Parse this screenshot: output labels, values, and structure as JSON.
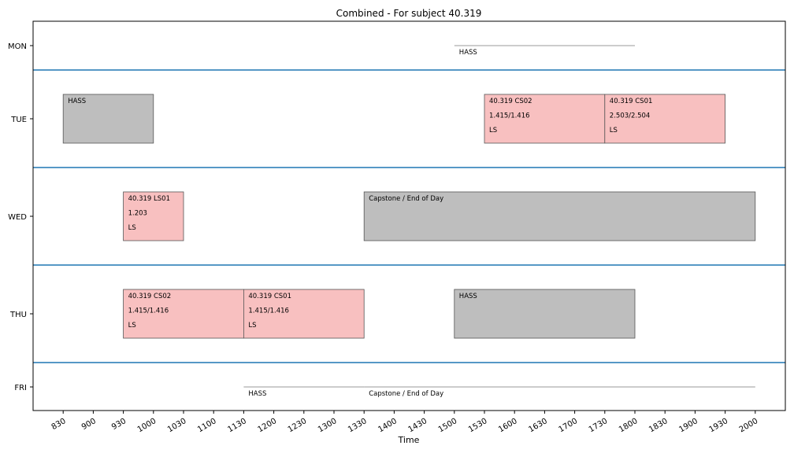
{
  "chart_data": {
    "type": "timeline",
    "title": "Combined - For subject 40.319",
    "xlabel": "Time",
    "ylabel": "",
    "x_ticks": [
      "830",
      "900",
      "930",
      "1000",
      "1030",
      "1100",
      "1130",
      "1200",
      "1230",
      "1300",
      "1330",
      "1400",
      "1430",
      "1500",
      "1530",
      "1600",
      "1630",
      "1700",
      "1730",
      "1800",
      "1830",
      "1900",
      "1930",
      "2000"
    ],
    "xlim": [
      "800",
      "2030"
    ],
    "days": [
      "MON",
      "TUE",
      "WED",
      "THU",
      "FRI"
    ],
    "grid": false,
    "colors": {
      "class": "#f8c0c0",
      "other": "#bebebe",
      "separator": "#1f77b4"
    },
    "events": [
      {
        "day": "MON",
        "start": "1500",
        "end": "1800",
        "kind": "line",
        "lines": [
          "HASS"
        ]
      },
      {
        "day": "TUE",
        "start": "830",
        "end": "1000",
        "kind": "other",
        "lines": [
          "HASS"
        ]
      },
      {
        "day": "TUE",
        "start": "1530",
        "end": "1730",
        "kind": "class",
        "lines": [
          "40.319 CS02",
          "1.415/1.416",
          "LS"
        ]
      },
      {
        "day": "TUE",
        "start": "1730",
        "end": "1930",
        "kind": "class",
        "lines": [
          "40.319 CS01",
          "2.503/2.504",
          "LS"
        ]
      },
      {
        "day": "WED",
        "start": "930",
        "end": "1030",
        "kind": "class",
        "lines": [
          "40.319 LS01",
          "1.203",
          "LS"
        ]
      },
      {
        "day": "WED",
        "start": "1330",
        "end": "2000",
        "kind": "other",
        "lines": [
          "Capstone / End of Day"
        ]
      },
      {
        "day": "THU",
        "start": "930",
        "end": "1130",
        "kind": "class",
        "lines": [
          "40.319 CS02",
          "1.415/1.416",
          "LS"
        ]
      },
      {
        "day": "THU",
        "start": "1130",
        "end": "1330",
        "kind": "class",
        "lines": [
          "40.319 CS01",
          "1.415/1.416",
          "LS"
        ]
      },
      {
        "day": "THU",
        "start": "1500",
        "end": "1800",
        "kind": "other",
        "lines": [
          "HASS"
        ]
      },
      {
        "day": "FRI",
        "start": "1130",
        "end": "1330",
        "kind": "line",
        "lines": [
          "HASS"
        ]
      },
      {
        "day": "FRI",
        "start": "1330",
        "end": "2000",
        "kind": "line",
        "lines": [
          "Capstone / End of Day"
        ]
      }
    ]
  }
}
